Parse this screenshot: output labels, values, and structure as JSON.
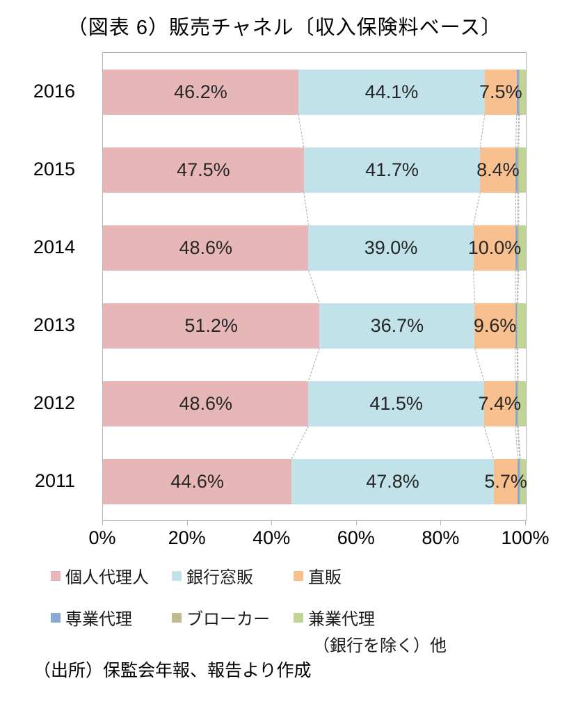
{
  "title": "（図表 6）販売チャネル〔収入保険料ベース〕",
  "source": "（出所）保監会年報、報告より作成",
  "colors": {
    "axis": "#b3b3b3",
    "connector": "#a6a6a6",
    "label_text": "#262626"
  },
  "chart_data": {
    "type": "bar",
    "orientation": "horizontal-stacked",
    "title": "（図表 6）販売チャネル〔収入保険料ベース〕",
    "categories": [
      "2016",
      "2015",
      "2014",
      "2013",
      "2012",
      "2011"
    ],
    "series": [
      {
        "name": "個人代理人",
        "color": "#e7b7b8",
        "labeled": true,
        "values": [
          46.2,
          47.5,
          48.6,
          51.2,
          48.6,
          44.6
        ]
      },
      {
        "name": "銀行窓販",
        "color": "#c2e2ea",
        "labeled": true,
        "values": [
          44.1,
          41.7,
          39.0,
          36.7,
          41.5,
          47.8
        ]
      },
      {
        "name": "直販",
        "color": "#f7c08e",
        "labeled": true,
        "values": [
          7.5,
          8.4,
          10.0,
          9.6,
          7.4,
          5.7
        ]
      },
      {
        "name": "専業代理",
        "color": "#8aaad2",
        "labeled": false,
        "values": [
          0.5,
          0.5,
          0.5,
          0.4,
          0.5,
          0.4
        ]
      },
      {
        "name": "ブローカー",
        "color": "#c2bb92",
        "labeled": false,
        "values": [
          0.2,
          0.2,
          0.2,
          0.2,
          0.2,
          0.2
        ]
      },
      {
        "name": "兼業代理（銀行を除く）他",
        "color": "#c0d494",
        "labeled": false,
        "values": [
          1.5,
          1.7,
          1.7,
          1.9,
          1.8,
          1.3
        ]
      }
    ],
    "x_ticks": [
      "0%",
      "20%",
      "40%",
      "60%",
      "80%",
      "100%"
    ],
    "xlim": [
      0,
      100
    ],
    "grid": false,
    "legend_position": "bottom",
    "legend": [
      {
        "label": "個人代理人"
      },
      {
        "label": "銀行窓販"
      },
      {
        "label": "直販"
      },
      {
        "label": "専業代理"
      },
      {
        "label": "ブローカー"
      },
      {
        "label": "兼業代理",
        "label2": "（銀行を除く）他"
      }
    ]
  }
}
